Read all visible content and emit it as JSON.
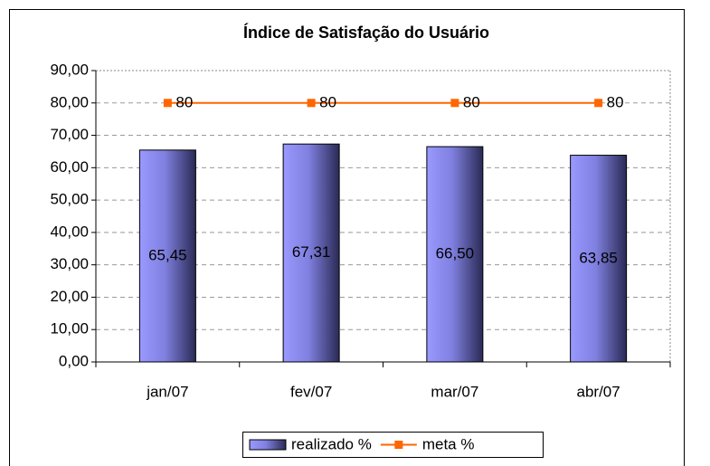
{
  "chart_data": {
    "type": "bar",
    "title": "Índice de Satisfação do Usuário",
    "categories": [
      "jan/07",
      "fev/07",
      "mar/07",
      "abr/07"
    ],
    "series": [
      {
        "name": "realizado %",
        "type": "bar",
        "color": "#9999ff",
        "values": [
          65.45,
          67.31,
          66.5,
          63.85
        ],
        "value_labels": [
          "65,45",
          "67,31",
          "66,50",
          "63,85"
        ]
      },
      {
        "name": "meta %",
        "type": "line",
        "color": "#ff6600",
        "values": [
          80,
          80,
          80,
          80
        ]
      }
    ],
    "ylim": [
      0,
      90
    ],
    "yticks": [
      {
        "value": 0,
        "label": "0,00"
      },
      {
        "value": 10,
        "label": "10,00"
      },
      {
        "value": 20,
        "label": "20,00"
      },
      {
        "value": 30,
        "label": "30,00"
      },
      {
        "value": 40,
        "label": "40,00"
      },
      {
        "value": 50,
        "label": "50,00"
      },
      {
        "value": 60,
        "label": "60,00"
      },
      {
        "value": 70,
        "label": "70,00"
      },
      {
        "value": 80,
        "label": "80,00"
      },
      {
        "value": 90,
        "label": "90,00"
      }
    ],
    "grid": true,
    "legend": "bottom"
  }
}
